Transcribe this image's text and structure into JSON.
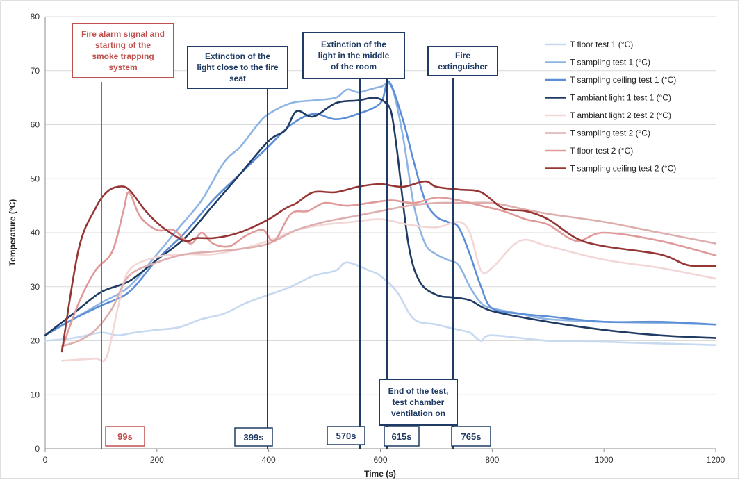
{
  "chart_data": {
    "type": "line",
    "xlabel": "Time (s)",
    "ylabel": "Temperature (°C)",
    "xlim": [
      0,
      1200
    ],
    "ylim": [
      0,
      80
    ],
    "xticks": [
      "0",
      "200",
      "400",
      "600",
      "800",
      "1000",
      "1200"
    ],
    "yticks": [
      "0",
      "10",
      "20",
      "30",
      "40",
      "50",
      "60",
      "70",
      "80"
    ],
    "grid": "horizontal",
    "legend_position": "top-right",
    "series": [
      {
        "name": "T floor test 1 (°C)",
        "color": "#c6d9f1",
        "x": [
          0,
          50,
          100,
          130,
          160,
          200,
          240,
          280,
          320,
          360,
          400,
          440,
          480,
          520,
          540,
          580,
          600,
          630,
          660,
          700,
          740,
          760,
          780,
          800,
          900,
          1000,
          1100,
          1200
        ],
        "y": [
          20,
          20.5,
          21.5,
          21,
          21.5,
          22,
          22.5,
          24,
          25,
          27,
          28.5,
          30,
          32,
          33,
          34.5,
          33,
          32,
          29,
          24,
          23,
          22,
          21.5,
          20,
          21,
          20,
          19.8,
          19.5,
          19.2
        ]
      },
      {
        "name": "T sampling test 1 (°C)",
        "color": "#8eb4e3",
        "x": [
          0,
          50,
          100,
          150,
          200,
          240,
          280,
          320,
          350,
          380,
          400,
          440,
          480,
          520,
          540,
          560,
          580,
          600,
          620,
          640,
          660,
          680,
          700,
          720,
          740,
          760,
          780,
          800,
          850,
          900,
          1000,
          1100,
          1200
        ],
        "y": [
          21,
          24,
          27,
          30,
          36,
          41,
          46,
          53,
          56,
          60,
          62,
          64,
          64.5,
          65,
          66.5,
          66,
          66.5,
          67,
          67,
          58,
          45,
          38,
          36,
          35,
          34,
          30,
          27,
          26,
          25,
          24,
          23.5,
          23.3,
          23
        ]
      },
      {
        "name": "T sampling ceiling test 1 (°C)",
        "color": "#5b8ed6",
        "x": [
          0,
          50,
          100,
          150,
          200,
          250,
          300,
          350,
          400,
          440,
          480,
          520,
          560,
          600,
          615,
          640,
          660,
          680,
          700,
          720,
          740,
          760,
          780,
          800,
          850,
          900,
          1000,
          1100,
          1200
        ],
        "y": [
          21,
          24,
          26.5,
          29,
          35,
          40,
          46,
          51,
          56,
          60,
          62,
          61,
          62,
          64,
          68,
          61,
          53,
          46,
          43,
          42,
          41,
          36,
          30,
          26,
          25,
          24.5,
          23.5,
          23.5,
          23
        ]
      },
      {
        "name": "T ambiant light 1 test 1 (°C)",
        "color": "#1f3b63",
        "x": [
          0,
          50,
          100,
          150,
          200,
          250,
          300,
          350,
          400,
          430,
          450,
          480,
          520,
          560,
          590,
          610,
          620,
          630,
          650,
          670,
          700,
          730,
          760,
          800,
          900,
          1000,
          1100,
          1200
        ],
        "y": [
          21,
          25,
          29,
          31,
          35,
          39,
          45,
          51,
          57,
          59,
          62.5,
          61.5,
          64,
          64.5,
          65,
          64,
          62,
          55,
          38,
          31,
          28.5,
          28,
          27.5,
          25.5,
          23.5,
          22,
          21,
          20.5
        ]
      },
      {
        "name": "T ambiant light 2 test 2 (°C)",
        "color": "#f2d7d6",
        "x": [
          30,
          60,
          90,
          110,
          130,
          150,
          200,
          250,
          300,
          350,
          400,
          450,
          500,
          550,
          600,
          650,
          700,
          740,
          760,
          780,
          800,
          850,
          900,
          1000,
          1100,
          1200
        ],
        "y": [
          16.3,
          16.5,
          16.7,
          17,
          26,
          33,
          35.5,
          36,
          36,
          37,
          38.5,
          40.5,
          41.5,
          42,
          42.5,
          41.5,
          41,
          42,
          40,
          33,
          33.5,
          38.5,
          37.5,
          35,
          33.5,
          31.5
        ]
      },
      {
        "name": "T sampling test 2 (°C)",
        "color": "#deaeae",
        "x": [
          30,
          60,
          90,
          120,
          150,
          200,
          250,
          300,
          350,
          400,
          450,
          500,
          550,
          600,
          650,
          700,
          750,
          800,
          850,
          900,
          1000,
          1100,
          1200
        ],
        "y": [
          19,
          20,
          22,
          26,
          32,
          34.5,
          36,
          36.5,
          37,
          38,
          40.5,
          42,
          43,
          44,
          45,
          45.5,
          45.5,
          45.5,
          44.5,
          43.5,
          42,
          40,
          38
        ]
      },
      {
        "name": "T floor test 2 (°C)",
        "color": "#e19a9a",
        "x": [
          30,
          60,
          90,
          120,
          140,
          150,
          170,
          200,
          230,
          260,
          280,
          300,
          330,
          360,
          390,
          410,
          440,
          470,
          500,
          540,
          580,
          620,
          660,
          700,
          740,
          780,
          820,
          860,
          900,
          950,
          1000,
          1100,
          1200
        ],
        "y": [
          18.5,
          27,
          33,
          36.5,
          44,
          47.5,
          43,
          40.5,
          40.5,
          38,
          40,
          38,
          37.5,
          39.5,
          40.5,
          38.5,
          43.5,
          44,
          45.5,
          45,
          45.5,
          46,
          45.5,
          46.5,
          46,
          45,
          44,
          42.5,
          41.5,
          38.5,
          40,
          38.5,
          35.8
        ]
      },
      {
        "name": "T sampling ceiling test 2 (°C)",
        "color": "#963634",
        "x": [
          30,
          60,
          90,
          110,
          130,
          150,
          180,
          210,
          250,
          270,
          300,
          330,
          360,
          400,
          430,
          450,
          480,
          520,
          560,
          600,
          640,
          680,
          700,
          740,
          780,
          820,
          860,
          900,
          950,
          1000,
          1100,
          1150,
          1200
        ],
        "y": [
          18,
          37,
          44.5,
          47.5,
          48.5,
          48,
          44,
          41,
          38.5,
          39,
          39,
          39.5,
          40.5,
          42.5,
          44.5,
          45.5,
          47.5,
          47.5,
          48.5,
          49,
          48.5,
          49.5,
          48.5,
          48,
          47.5,
          44.5,
          44,
          42.5,
          39,
          37.5,
          36,
          34,
          33.8
        ]
      }
    ],
    "events": [
      {
        "time": 99,
        "label": "99s",
        "color": "#c0504d",
        "annotation_lines": [
          "Fire alarm signal and",
          "starting of the",
          "smoke trapping",
          "system"
        ],
        "annotation_color": "#c0504d"
      },
      {
        "time": 399,
        "label": "399s",
        "color": "#1f3b63",
        "annotation_lines": [
          "Extinction of the",
          "light close to the fire",
          "seat"
        ],
        "annotation_color": "#1f3b63"
      },
      {
        "time": 570,
        "label": "570s",
        "color": "#1f3b63",
        "annotation_lines": [
          "Extinction of the",
          "light in the middle",
          "of the room"
        ],
        "annotation_color": "#1f3b63"
      },
      {
        "time": 615,
        "label": "615s",
        "color": "#1f3b63",
        "annotation_lines": [
          "End of the test,",
          "test chamber",
          "ventilation on"
        ],
        "annotation_color": "#1f3b63"
      },
      {
        "time": 765,
        "label": "765s",
        "color": "#1f3b63",
        "annotation_lines": [
          "Fire",
          "extinguisher"
        ],
        "annotation_color": "#1f3b63"
      }
    ]
  }
}
